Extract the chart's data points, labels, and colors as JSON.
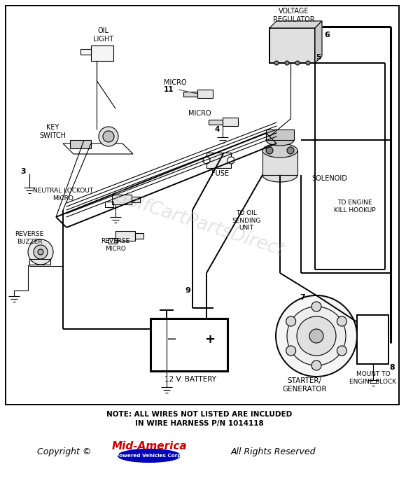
{
  "bg_color": "#ffffff",
  "line_color": "#000000",
  "watermark_text": "GolfCartPartsDirect",
  "watermark_color": "#b0b0b0",
  "note_line1": "NOTE: ALL WIRES NOT LISTED ARE INCLUDED",
  "note_line2": "IN WIRE HARNESS P/N 1014118",
  "copyright_text": "Copyright ©",
  "brand_text": "Mid-America",
  "brand_sub": "Powered Vehicles Corp.",
  "rights_text": "All Rights Reserved",
  "brand_color": "#cc0000",
  "brand_outline": "#0000cc",
  "labels": {
    "oil_light": "OIL\nLIGHT",
    "key_switch": "KEY\nSWITCH",
    "neutral_lockout": "NEUTRAL LOCKOUT\nMICRO",
    "reverse_buzzer": "REVERSE\nBUZZER",
    "reverse_micro": "REVERSE\nMICRO",
    "voltage_reg": "VOLTAGE\nREGULATOR",
    "micro_top": "MICRO",
    "micro_mid": "MICRO",
    "fuse": "FUSE",
    "solenoid": "SOLENOID",
    "to_oil": "TO OIL\nSENDING\nUNIT",
    "to_engine_kill": "TO ENGINE\nKILL HOOKUP",
    "battery": "12 V. BATTERY",
    "starter_gen": "STARTER/\nGENERATOR",
    "mount_to": "MOUNT TO\nENGINE BLOCK",
    "num3": "3",
    "num4": "4",
    "num5": "5",
    "num6": "6",
    "num7": "7",
    "num8": "8",
    "num9": "9",
    "num11": "11"
  }
}
